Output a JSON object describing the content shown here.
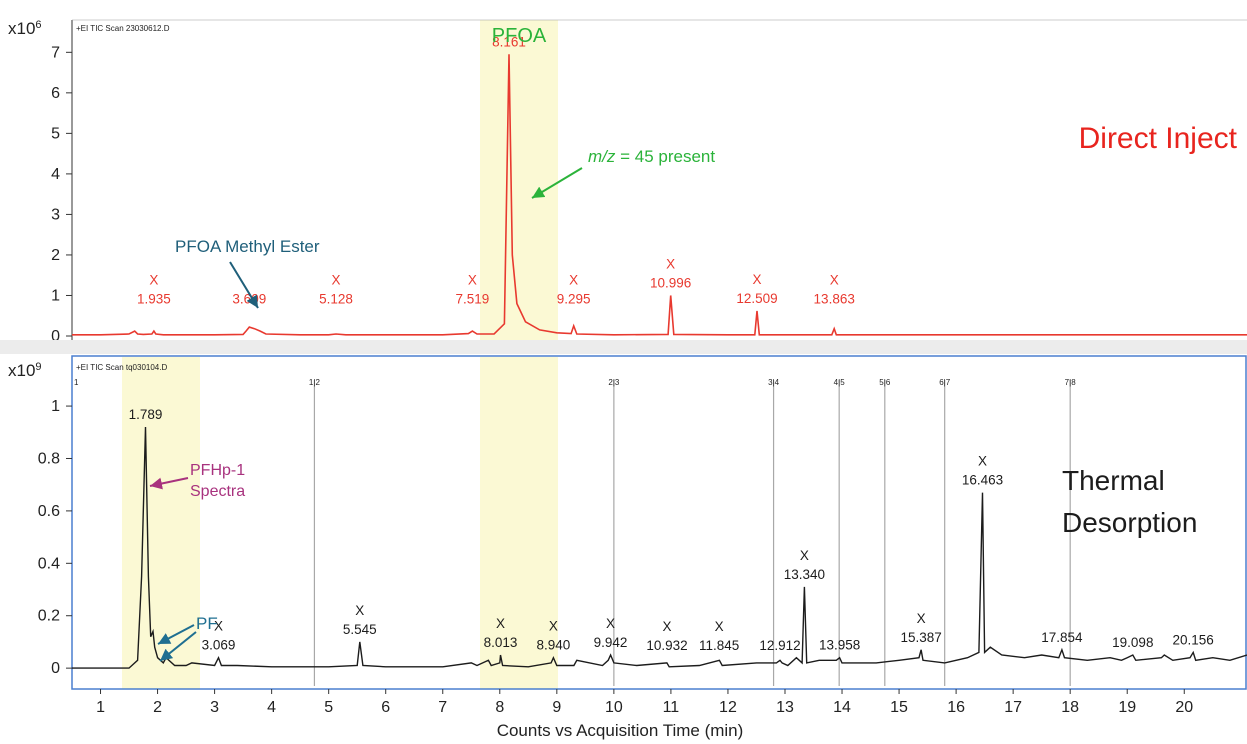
{
  "chart_data": [
    {
      "type": "line",
      "panel": "top",
      "header": "+EI TIC Scan 23030612.D",
      "y_scale_label": "x10",
      "y_scale_exp": "6",
      "y_range": [
        0,
        7.6
      ],
      "y_ticks": [
        "0",
        "1",
        "2",
        "3",
        "4",
        "5",
        "6",
        "7"
      ],
      "x_range": [
        0.5,
        21.1
      ],
      "grid": false,
      "line_color": "#e8392f",
      "highlight_color": "#fbf9d4",
      "highlights": [
        [
          7.5,
          8.8
        ]
      ],
      "highlight_label": "PFOA",
      "corner_label": "Direct Inject",
      "peaks": [
        {
          "t": 1.935,
          "label": "1.935",
          "marker": "X",
          "h": 0.12
        },
        {
          "t": 3.609,
          "label": "3.609",
          "marker": "",
          "h": 0.22
        },
        {
          "t": 5.128,
          "label": "5.128",
          "marker": "X",
          "h": 0.05
        },
        {
          "t": 7.519,
          "label": "7.519",
          "marker": "X",
          "h": 0.12
        },
        {
          "t": 8.161,
          "label": "8.161",
          "marker": "",
          "h": 6.95
        },
        {
          "t": 9.295,
          "label": "9.295",
          "marker": "X",
          "h": 0.25
        },
        {
          "t": 10.996,
          "label": "10.996",
          "marker": "X",
          "h": 1.0
        },
        {
          "t": 12.509,
          "label": "12.509",
          "marker": "X",
          "h": 0.62
        },
        {
          "t": 13.863,
          "label": "13.863",
          "marker": "X",
          "h": 0.18
        }
      ],
      "annotations": [
        {
          "text": "PFOA Methyl Ester",
          "color": "#1f5f7a",
          "points_to": 3.609
        },
        {
          "text_italic": "m/z",
          "text": " = 45 present",
          "color": "#2bb33a",
          "points_to": 8.161
        }
      ],
      "series": [
        {
          "x": [
            0.5,
            1.0,
            1.5,
            1.6,
            1.65,
            1.75,
            1.9,
            1.935,
            1.97,
            2.1,
            2.3,
            2.5,
            3.0,
            3.5,
            3.55,
            3.609,
            3.7,
            3.8,
            3.9,
            4.5,
            5.0,
            5.128,
            5.3,
            6.0,
            7.0,
            7.45,
            7.519,
            7.6,
            7.9,
            8.08,
            8.161,
            8.22,
            8.3,
            8.45,
            8.7,
            9.0,
            9.25,
            9.295,
            9.35,
            10.0,
            10.95,
            10.996,
            11.05,
            12.0,
            12.47,
            12.509,
            12.55,
            13.0,
            13.82,
            13.863,
            13.9,
            15.0,
            17.0,
            19.0,
            21.1
          ],
          "y": [
            0.03,
            0.03,
            0.05,
            0.12,
            0.05,
            0.04,
            0.05,
            0.12,
            0.05,
            0.03,
            0.03,
            0.03,
            0.03,
            0.04,
            0.12,
            0.22,
            0.18,
            0.12,
            0.05,
            0.03,
            0.03,
            0.05,
            0.03,
            0.03,
            0.03,
            0.06,
            0.12,
            0.05,
            0.05,
            0.3,
            6.95,
            2.0,
            0.8,
            0.35,
            0.15,
            0.08,
            0.06,
            0.25,
            0.05,
            0.03,
            0.04,
            1.0,
            0.04,
            0.03,
            0.03,
            0.62,
            0.03,
            0.03,
            0.03,
            0.18,
            0.03,
            0.03,
            0.03,
            0.03,
            0.03
          ]
        }
      ]
    },
    {
      "type": "line",
      "panel": "bottom",
      "header": "+EI TIC Scan tq030104.D",
      "y_scale_label": "x10",
      "y_scale_exp": "9",
      "y_range": [
        -0.03,
        1.13
      ],
      "y_ticks": [
        "0",
        "0.2",
        "0.4",
        "0.6",
        "0.8",
        "1"
      ],
      "x_range": [
        0.5,
        21.1
      ],
      "x_ticks": [
        "1",
        "2",
        "3",
        "4",
        "5",
        "6",
        "7",
        "8",
        "9",
        "10",
        "11",
        "12",
        "13",
        "14",
        "15",
        "16",
        "17",
        "18",
        "19",
        "20"
      ],
      "xlabel": "Counts vs Acquisition Time (min)",
      "grid": false,
      "line_color": "#1c1c1c",
      "highlight_color": "#fbf9d4",
      "highlights": [
        [
          1.4,
          2.65
        ],
        [
          7.5,
          8.8
        ]
      ],
      "corner_label_1": "Thermal",
      "corner_label_2": "Desorption",
      "segment_markers": [
        {
          "t": 0.5,
          "label": "1"
        },
        {
          "t": 4.75,
          "label": "1|2"
        },
        {
          "t": 10.0,
          "label": "2|3"
        },
        {
          "t": 12.8,
          "label": "3|4"
        },
        {
          "t": 13.95,
          "label": "4|5"
        },
        {
          "t": 14.75,
          "label": "5|6"
        },
        {
          "t": 15.8,
          "label": "6|7"
        },
        {
          "t": 18.0,
          "label": "7|8"
        }
      ],
      "peaks": [
        {
          "t": 1.789,
          "label": "1.789",
          "marker": "",
          "h": 0.92
        },
        {
          "t": 3.069,
          "label": "3.069",
          "marker": "X",
          "h": 0.04
        },
        {
          "t": 5.545,
          "label": "5.545",
          "marker": "X",
          "h": 0.1
        },
        {
          "t": 8.013,
          "label": "8.013",
          "marker": "X",
          "h": 0.05
        },
        {
          "t": 8.94,
          "label": "8.940",
          "marker": "X",
          "h": 0.04
        },
        {
          "t": 9.942,
          "label": "9.942",
          "marker": "X",
          "h": 0.05
        },
        {
          "t": 10.932,
          "label": "10.932",
          "marker": "X",
          "h": 0.02
        },
        {
          "t": 11.845,
          "label": "11.845",
          "marker": "X",
          "h": 0.03
        },
        {
          "t": 12.912,
          "label": "12.912",
          "marker": "",
          "h": 0.03
        },
        {
          "t": 13.34,
          "label": "13.340",
          "marker": "X",
          "h": 0.31
        },
        {
          "t": 13.958,
          "label": "13.958",
          "marker": "",
          "h": 0.04
        },
        {
          "t": 15.387,
          "label": "15.387",
          "marker": "X",
          "h": 0.07
        },
        {
          "t": 16.463,
          "label": "16.463",
          "marker": "X",
          "h": 0.67
        },
        {
          "t": 17.854,
          "label": "17.854",
          "marker": "",
          "h": 0.07
        },
        {
          "t": 19.098,
          "label": "19.098",
          "marker": "",
          "h": 0.05
        },
        {
          "t": 20.156,
          "label": "20.156",
          "marker": "",
          "h": 0.06
        }
      ],
      "annotations": [
        {
          "text_line1": "PFHp-1",
          "text_line2": "Spectra",
          "color": "#a8327e",
          "points_to": 1.789
        },
        {
          "text": "PF",
          "color": "#1f6f91",
          "points_to": [
            1.9,
            1.98
          ]
        }
      ],
      "series": [
        {
          "x": [
            0.5,
            1.0,
            1.5,
            1.65,
            1.72,
            1.789,
            1.84,
            1.88,
            1.92,
            1.95,
            2.0,
            2.1,
            2.15,
            2.3,
            2.5,
            2.6,
            3.0,
            3.069,
            3.12,
            3.4,
            4.0,
            5.0,
            5.5,
            5.545,
            5.6,
            6.0,
            7.0,
            7.5,
            7.6,
            7.8,
            7.85,
            8.0,
            8.013,
            8.05,
            8.5,
            8.9,
            8.94,
            9.0,
            9.3,
            9.35,
            9.8,
            9.9,
            9.942,
            10.0,
            10.4,
            10.93,
            10.97,
            11.5,
            11.85,
            11.9,
            12.5,
            12.85,
            12.912,
            12.95,
            13.05,
            13.2,
            13.3,
            13.34,
            13.38,
            13.6,
            13.9,
            13.958,
            14.0,
            14.3,
            14.6,
            15.0,
            15.35,
            15.387,
            15.42,
            15.8,
            16.0,
            16.2,
            16.4,
            16.463,
            16.5,
            16.6,
            16.8,
            17.2,
            17.5,
            17.8,
            17.854,
            17.9,
            18.3,
            18.7,
            18.9,
            19.0,
            19.098,
            19.15,
            19.6,
            19.65,
            19.8,
            20.1,
            20.156,
            20.2,
            20.5,
            20.8,
            21.1
          ],
          "y": [
            0.0,
            0.0,
            0.0,
            0.03,
            0.35,
            0.92,
            0.35,
            0.12,
            0.14,
            0.08,
            0.04,
            0.02,
            0.04,
            0.01,
            0.01,
            0.02,
            0.01,
            0.04,
            0.01,
            0.01,
            0.005,
            0.005,
            0.01,
            0.1,
            0.01,
            0.005,
            0.005,
            0.02,
            0.01,
            0.03,
            0.01,
            0.02,
            0.05,
            0.01,
            0.005,
            0.02,
            0.04,
            0.01,
            0.01,
            0.03,
            0.01,
            0.03,
            0.05,
            0.02,
            0.01,
            0.02,
            0.005,
            0.01,
            0.03,
            0.01,
            0.02,
            0.02,
            0.03,
            0.02,
            0.01,
            0.04,
            0.02,
            0.31,
            0.02,
            0.03,
            0.03,
            0.04,
            0.02,
            0.02,
            0.02,
            0.03,
            0.04,
            0.07,
            0.03,
            0.02,
            0.03,
            0.04,
            0.06,
            0.67,
            0.06,
            0.08,
            0.05,
            0.04,
            0.05,
            0.04,
            0.07,
            0.04,
            0.03,
            0.04,
            0.03,
            0.04,
            0.05,
            0.03,
            0.04,
            0.05,
            0.03,
            0.04,
            0.06,
            0.03,
            0.04,
            0.03,
            0.05
          ]
        }
      ]
    }
  ]
}
